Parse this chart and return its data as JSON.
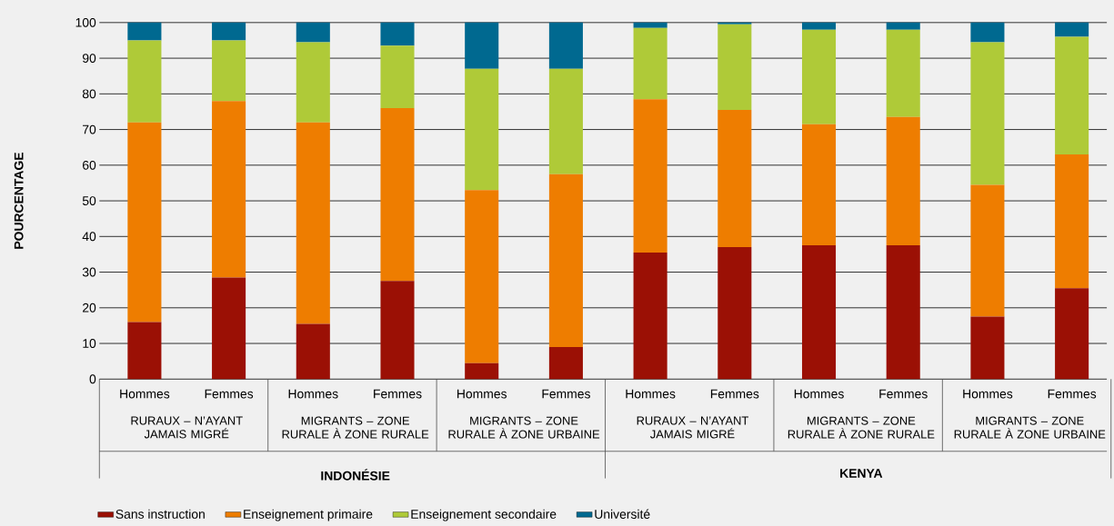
{
  "chart_data": {
    "type": "bar",
    "stacked": true,
    "ylabel": "POURCENTAGE",
    "categories": [
      "Hommes",
      "Femmes",
      "Hommes",
      "Femmes",
      "Hommes",
      "Femmes",
      "Hommes",
      "Femmes",
      "Hommes",
      "Femmes",
      "Hommes",
      "Femmes"
    ],
    "series": [
      {
        "name": "Sans instruction",
        "color": "#9b1005",
        "values": [
          16,
          28.5,
          15.5,
          27.5,
          4.5,
          9,
          35.5,
          37,
          37.5,
          37.5,
          17.5,
          25.5
        ]
      },
      {
        "name": "Enseignement primaire",
        "color": "#ee7d00",
        "values": [
          56,
          49.5,
          56.5,
          48.5,
          48.5,
          48.5,
          43,
          38.5,
          34,
          36,
          37,
          37.5
        ]
      },
      {
        "name": "Enseignement secondaire",
        "color": "#afca38",
        "values": [
          23,
          17,
          22.5,
          17.5,
          34,
          29.5,
          20,
          24,
          26.5,
          24.5,
          40,
          33
        ]
      },
      {
        "name": "Université",
        "color": "#006990",
        "values": [
          5,
          5,
          5.5,
          6.5,
          13,
          13,
          1.5,
          0.5,
          2,
          2,
          5.5,
          4
        ]
      }
    ],
    "ylim": [
      0,
      100
    ],
    "yticks": [
      0,
      10,
      20,
      30,
      40,
      50,
      60,
      70,
      80,
      90,
      100
    ],
    "grid": "y",
    "legend": "bottom",
    "annotations": [
      "RURAUX – N’AYANT JAMAIS MIGRÉ",
      "MIGRANTS – ZONE RURALE À ZONE RURALE",
      "MIGRANTS – ZONE RURALE À ZONE URBAINE",
      "RURAUX – N’AYANT JAMAIS MIGRÉ",
      "MIGRANTS – ZONE RURALE À ZONE RURALE",
      "MIGRANTS – ZONE RURALE À ZONE URBAINE",
      "**INDONÉSIE**",
      "**KENYA**"
    ]
  }
}
